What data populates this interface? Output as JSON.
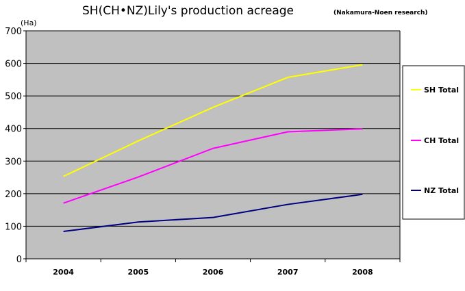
{
  "chart_data": {
    "type": "line",
    "title": "SH(CH•NZ)Lily's production acreage",
    "subtitle": "(Nakamura-Noen research)",
    "ylabel": "(Ha)",
    "xlabel": "",
    "categories": [
      "2004",
      "2005",
      "2006",
      "2007",
      "2008"
    ],
    "ylim": [
      0,
      700
    ],
    "yticks": [
      0,
      100,
      200,
      300,
      400,
      500,
      600,
      700
    ],
    "grid": true,
    "legend": "right",
    "plot_background": "#c0c0c0",
    "series": [
      {
        "name": "SH Total",
        "color": "#ffff00",
        "values": [
          253,
          362,
          465,
          557,
          596
        ]
      },
      {
        "name": "CH Total",
        "color": "#ff00ff",
        "values": [
          171,
          251,
          339,
          390,
          399
        ]
      },
      {
        "name": "NZ Total",
        "color": "#000080",
        "values": [
          84,
          113,
          127,
          167,
          198
        ]
      }
    ]
  }
}
